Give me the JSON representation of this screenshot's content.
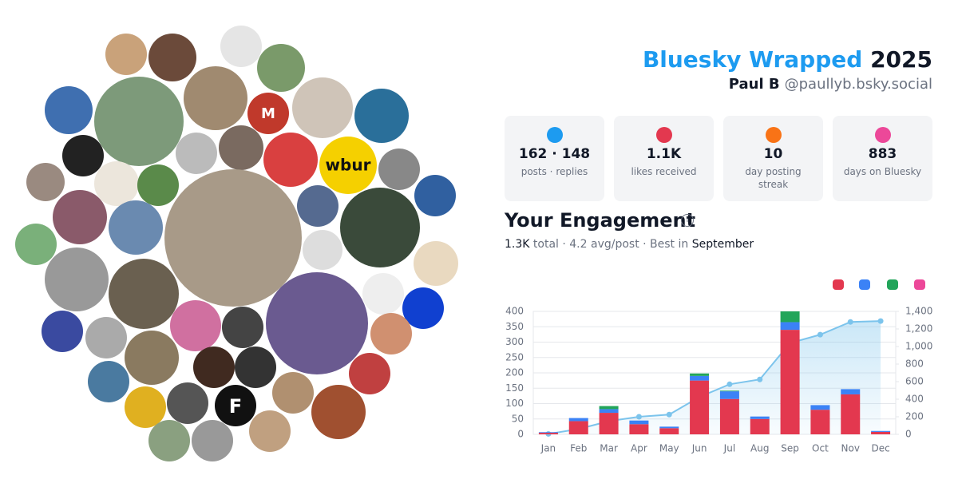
{
  "header": {
    "title": "Bluesky Wrapped",
    "year": "2025",
    "name": "Paul B",
    "handle": "@paullyb.bsky.social"
  },
  "stats": [
    {
      "value": "162 · 148",
      "label": "posts · replies"
    },
    {
      "value": "1.1K",
      "label": "likes received"
    },
    {
      "value": "10",
      "label": "day posting streak"
    },
    {
      "value": "883",
      "label": "days on Bluesky"
    }
  ],
  "engagement": {
    "title": "Your Engagement",
    "total": "1.3K",
    "summary": "total · 4.2 avg/post · Best in",
    "best_month": "September"
  },
  "avatars": {
    "logos": [
      "wbur",
      "M",
      "F"
    ]
  },
  "chart_data": {
    "type": "bar",
    "stacked": true,
    "categories": [
      "Jan",
      "Feb",
      "Mar",
      "Apr",
      "May",
      "Jun",
      "Jul",
      "Aug",
      "Sep",
      "Oct",
      "Nov",
      "Dec"
    ],
    "series": [
      {
        "color": "#e3384f",
        "values": [
          5,
          43,
          70,
          33,
          20,
          175,
          115,
          50,
          340,
          80,
          130,
          8
        ]
      },
      {
        "color": "#3b82f6",
        "values": [
          2,
          10,
          12,
          12,
          5,
          15,
          25,
          8,
          25,
          15,
          17,
          3
        ]
      },
      {
        "color": "#22a55a",
        "values": [
          0,
          0,
          10,
          0,
          0,
          8,
          2,
          0,
          35,
          0,
          0,
          0
        ]
      },
      {
        "type": "line",
        "axis": "y2",
        "color": "#7cc4ec",
        "values": [
          5,
          60,
          150,
          200,
          225,
          425,
          570,
          625,
          1040,
          1135,
          1280,
          1290
        ]
      }
    ],
    "ylim": [
      0,
      400
    ],
    "yticks": [
      0,
      50,
      100,
      150,
      200,
      250,
      300,
      350,
      400
    ],
    "y2lim": [
      0,
      1400
    ],
    "y2ticks": [
      0,
      200,
      400,
      600,
      800,
      {
        "value": 1000,
        "label": "1,000"
      },
      {
        "value": 1200,
        "label": "1,200"
      },
      {
        "value": 1400,
        "label": "1,400"
      }
    ],
    "grid": true
  }
}
